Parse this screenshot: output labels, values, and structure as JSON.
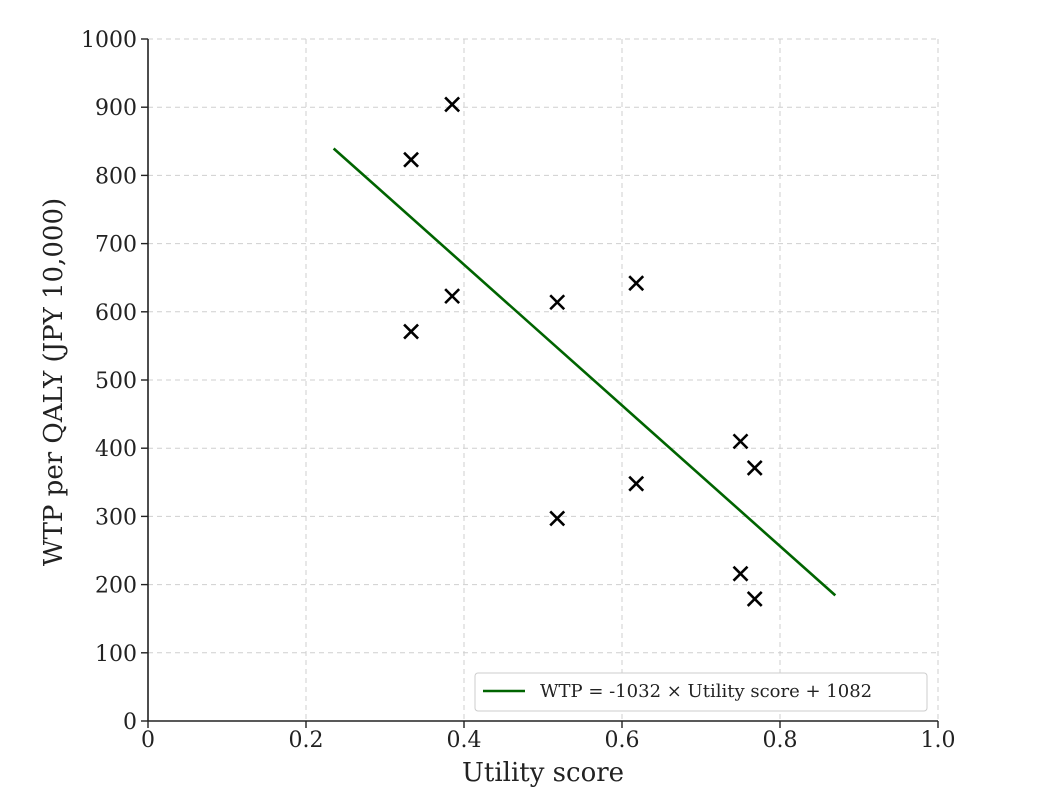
{
  "chart_data": {
    "type": "scatter",
    "title": "",
    "xlabel": "Utility score",
    "ylabel": "WTP per QALY (JPY 10,000)",
    "xlim": [
      0,
      1.0
    ],
    "ylim": [
      0,
      1000
    ],
    "x_ticks": [
      0,
      0.2,
      0.4,
      0.6,
      0.8,
      1.0
    ],
    "x_tick_labels": [
      "0",
      "0.2",
      "0.4",
      "0.6",
      "0.8",
      "1.0"
    ],
    "y_ticks": [
      0,
      100,
      200,
      300,
      400,
      500,
      600,
      700,
      800,
      900,
      1000
    ],
    "y_tick_labels": [
      "0",
      "100",
      "200",
      "300",
      "400",
      "500",
      "600",
      "700",
      "800",
      "900",
      "1000"
    ],
    "grid": true,
    "series": [
      {
        "marker": "x",
        "color": "#000000",
        "points": [
          {
            "x": 0.333,
            "y": 823
          },
          {
            "x": 0.333,
            "y": 571
          },
          {
            "x": 0.385,
            "y": 904
          },
          {
            "x": 0.385,
            "y": 623
          },
          {
            "x": 0.518,
            "y": 614
          },
          {
            "x": 0.518,
            "y": 297
          },
          {
            "x": 0.618,
            "y": 642
          },
          {
            "x": 0.618,
            "y": 348
          },
          {
            "x": 0.75,
            "y": 410
          },
          {
            "x": 0.75,
            "y": 216
          },
          {
            "x": 0.768,
            "y": 371
          },
          {
            "x": 0.768,
            "y": 179
          }
        ]
      }
    ],
    "fit_line": {
      "label": "WTP = -1032 × Utility score + 1082",
      "slope": -1032,
      "intercept": 1082,
      "x_start": 0.235,
      "x_end": 0.87,
      "color": "#006400"
    },
    "legend_position": "bottom-right"
  }
}
